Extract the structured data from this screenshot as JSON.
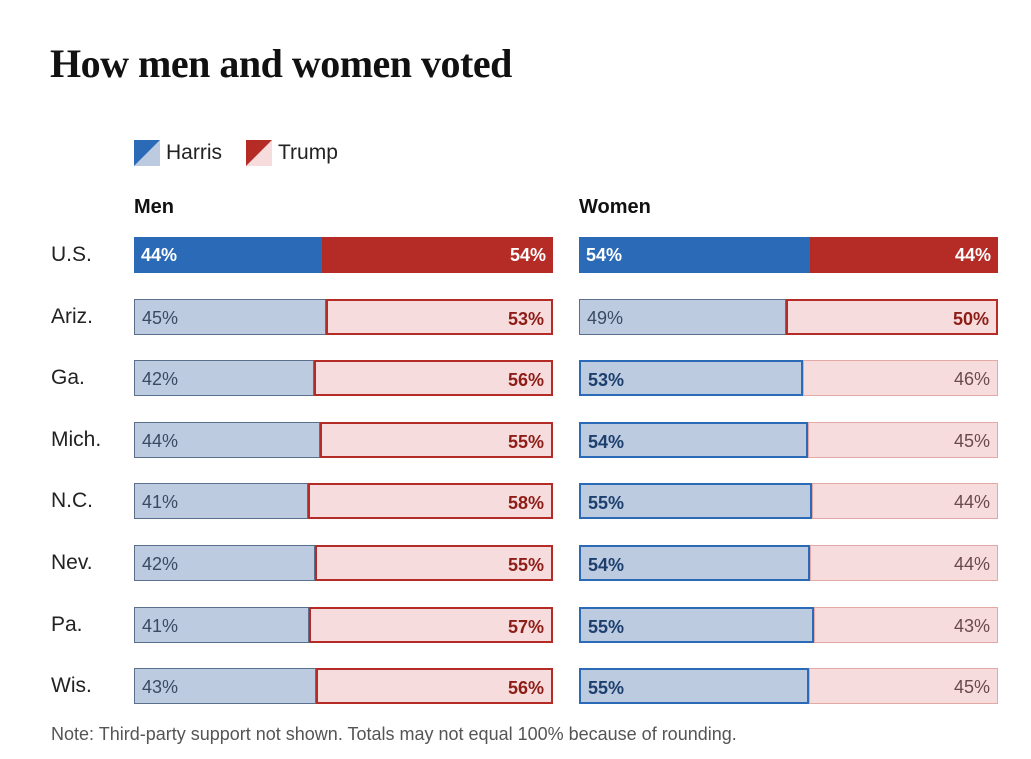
{
  "title": "How men and women voted",
  "legend": [
    {
      "label": "Harris",
      "color": "#2a6ab7",
      "light": "#bccbe0"
    },
    {
      "label": "Trump",
      "color": "#b52b25",
      "light": "#f6dcdc"
    }
  ],
  "chart_data": {
    "type": "bar",
    "orientation": "horizontal",
    "stacked": true,
    "categories": [
      "U.S.",
      "Ariz.",
      "Ga.",
      "Mich.",
      "N.C.",
      "Nev.",
      "Pa.",
      "Wis."
    ],
    "panels": [
      {
        "title": "Men",
        "series": [
          {
            "name": "Harris",
            "values": [
              44,
              45,
              42,
              44,
              41,
              42,
              41,
              43
            ]
          },
          {
            "name": "Trump",
            "values": [
              54,
              53,
              56,
              55,
              58,
              55,
              57,
              56
            ]
          }
        ]
      },
      {
        "title": "Women",
        "series": [
          {
            "name": "Harris",
            "values": [
              54,
              49,
              53,
              54,
              55,
              54,
              55,
              55
            ]
          },
          {
            "name": "Trump",
            "values": [
              44,
              50,
              46,
              45,
              44,
              44,
              43,
              45
            ]
          }
        ]
      }
    ],
    "value_suffix": "%",
    "xlim": [
      0,
      100
    ]
  },
  "note": "Note: Third-party support not shown. Totals may not equal 100% because of rounding."
}
